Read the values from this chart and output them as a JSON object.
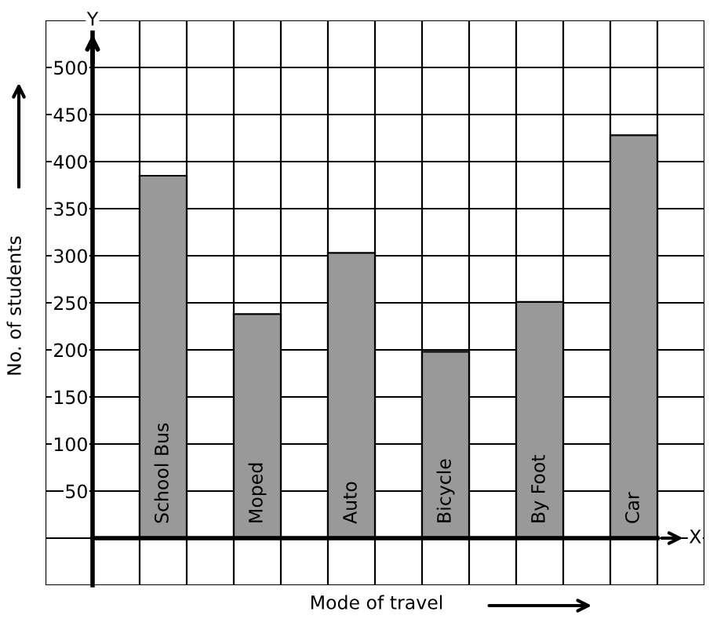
{
  "chart_data": {
    "type": "bar",
    "categories": [
      "School Bus",
      "Moped",
      "Auto",
      "Bicycle",
      "By Foot",
      "Car"
    ],
    "values": [
      385,
      238,
      303,
      198,
      251,
      428
    ],
    "color": "#999999",
    "xlabel": "Mode of travel",
    "ylabel": "No. of students",
    "annotations": [
      "X",
      "Y"
    ],
    "ylim": [
      -50,
      550
    ],
    "yticks": [
      50,
      100,
      150,
      200,
      250,
      300,
      350,
      400,
      450,
      500
    ],
    "grid": true
  }
}
